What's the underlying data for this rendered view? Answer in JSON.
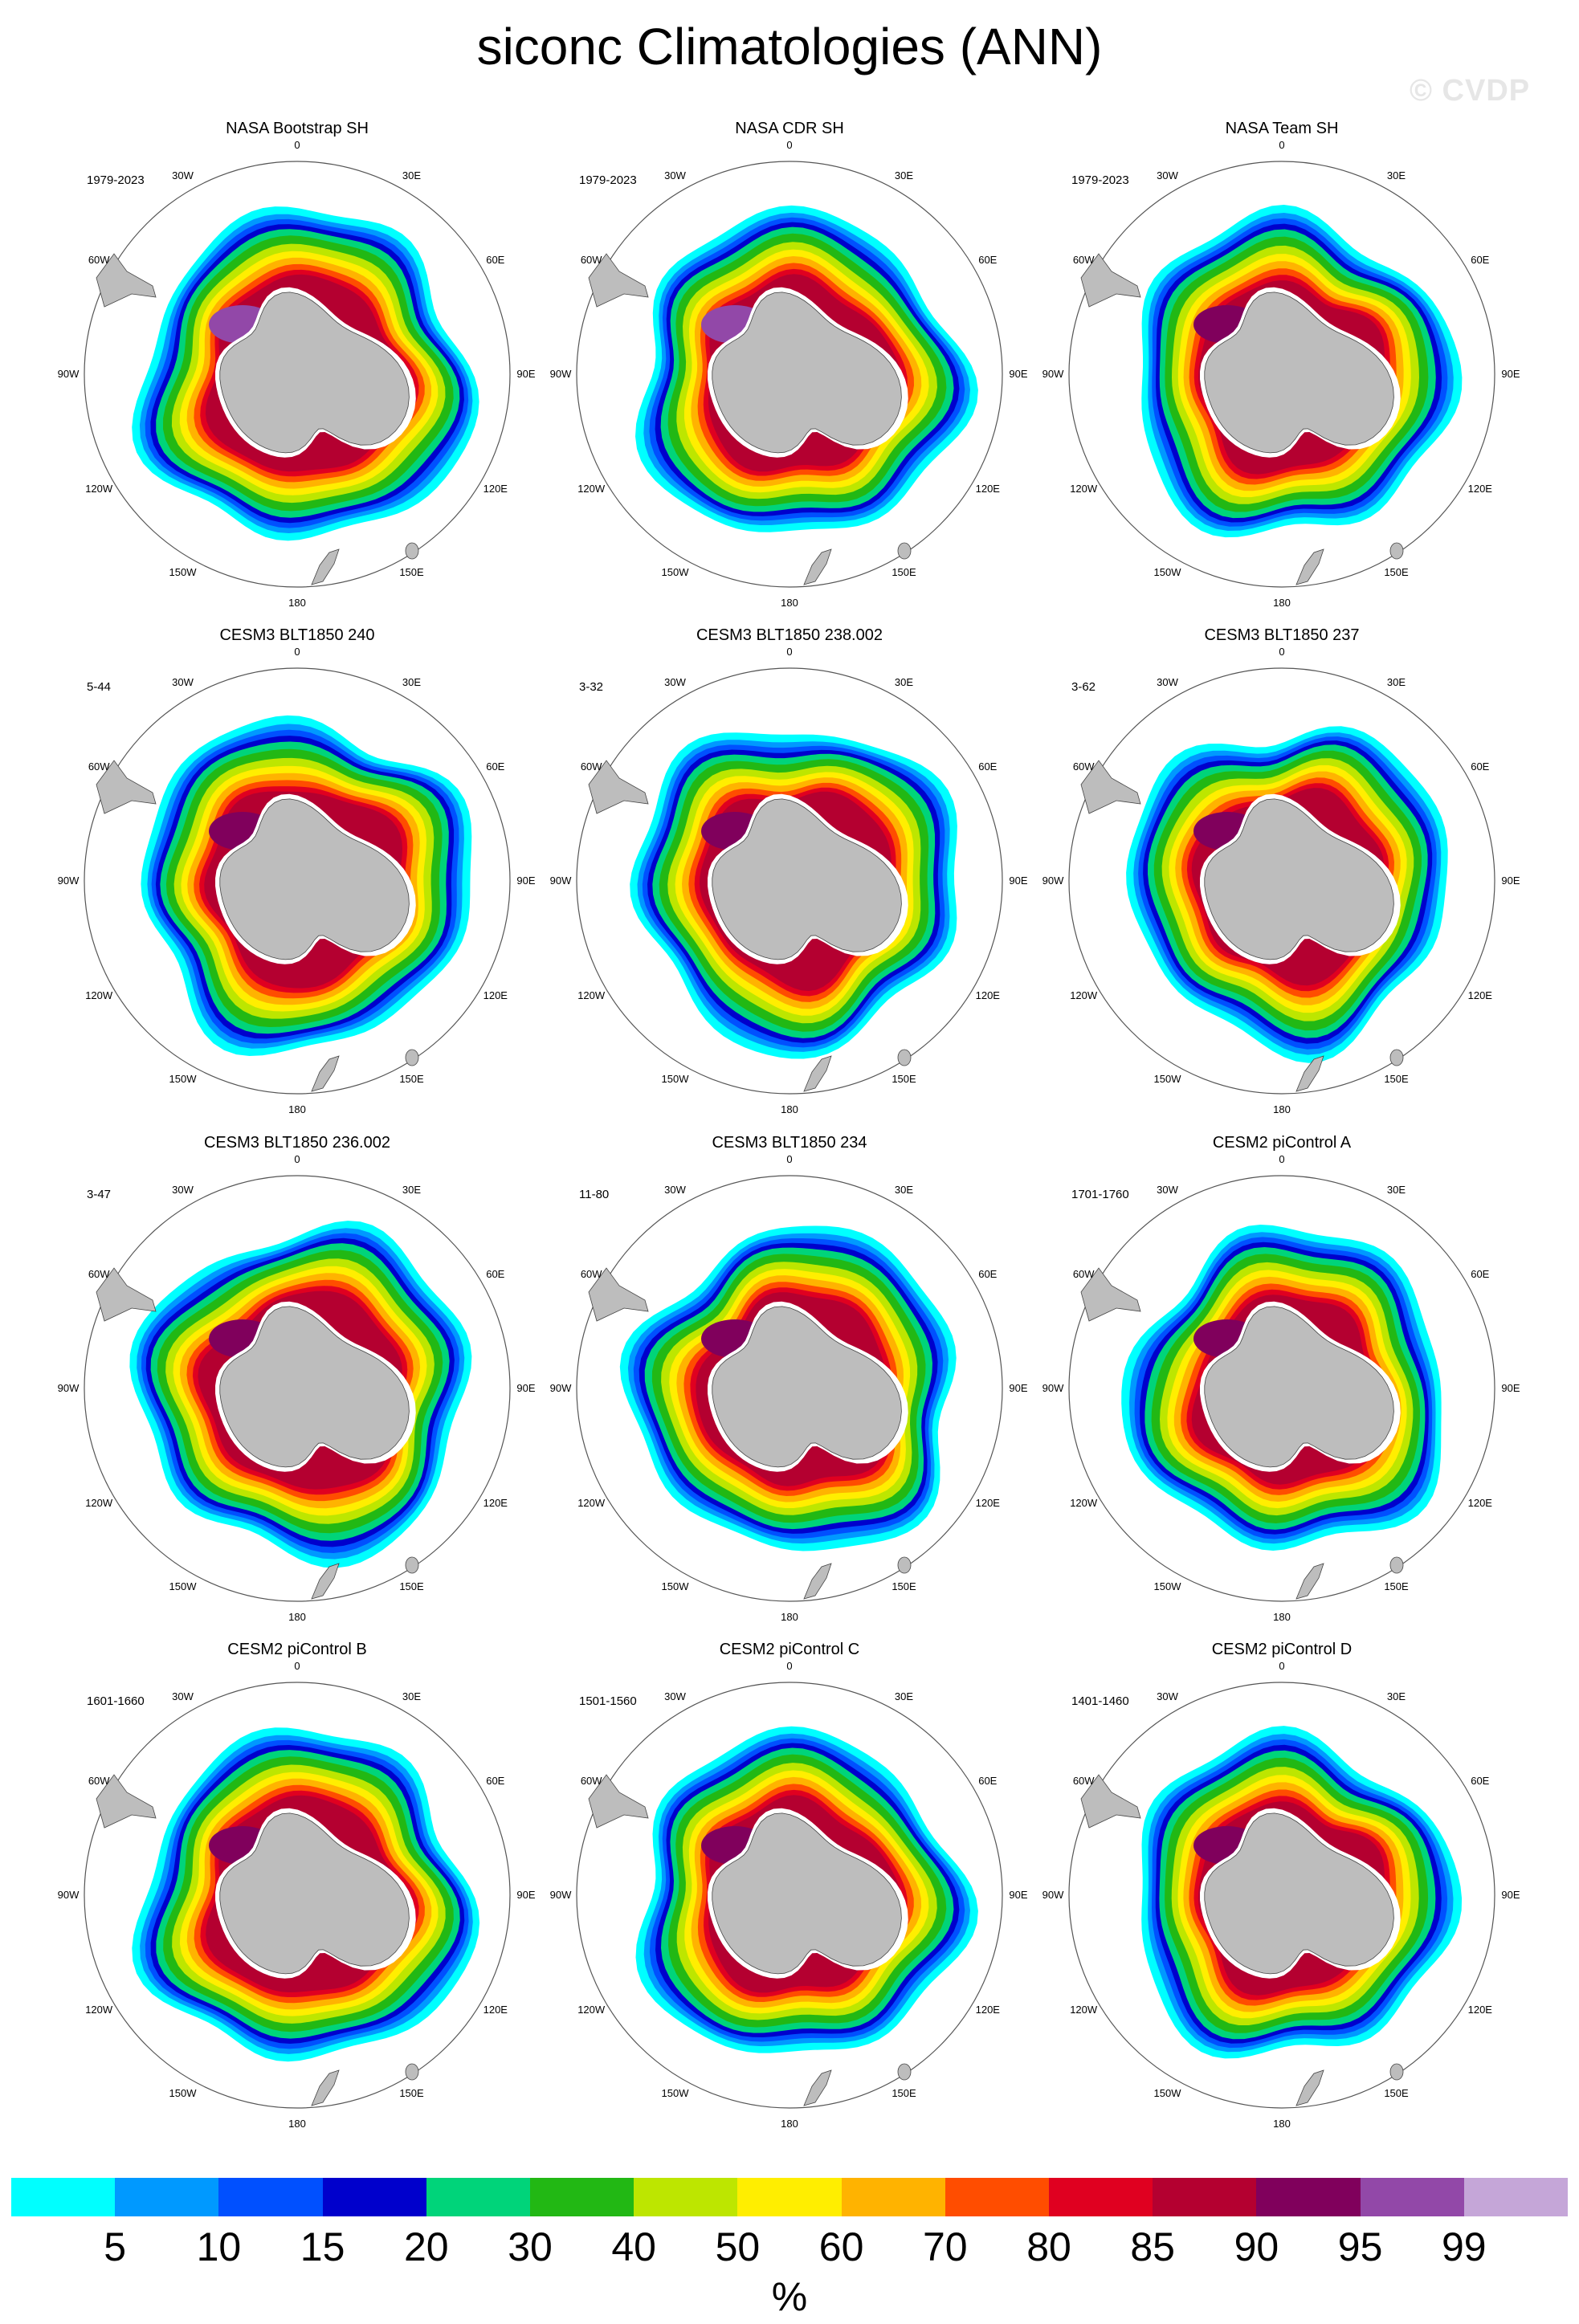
{
  "title": "siconc Climatologies (ANN)",
  "watermark": "© CVDP",
  "panels": [
    {
      "title": "NASA Bootstrap SH",
      "period": "1979-2023"
    },
    {
      "title": "NASA CDR SH",
      "period": "1979-2023"
    },
    {
      "title": "NASA Team SH",
      "period": "1979-2023"
    },
    {
      "title": "CESM3 BLT1850 240",
      "period": "5-44"
    },
    {
      "title": "CESM3 BLT1850 238.002",
      "period": "3-32"
    },
    {
      "title": "CESM3 BLT1850 237",
      "period": "3-62"
    },
    {
      "title": "CESM3 BLT1850 236.002",
      "period": "3-47"
    },
    {
      "title": "CESM3 BLT1850 234",
      "period": "11-80"
    },
    {
      "title": "CESM2 piControl A",
      "period": "1701-1760"
    },
    {
      "title": "CESM2 piControl B",
      "period": "1601-1660"
    },
    {
      "title": "CESM2 piControl C",
      "period": "1501-1560"
    },
    {
      "title": "CESM2 piControl D",
      "period": "1401-1460"
    }
  ],
  "longitude_labels": [
    {
      "lon": 0,
      "text": "0"
    },
    {
      "lon": -30,
      "text": "30W"
    },
    {
      "lon": 30,
      "text": "30E"
    },
    {
      "lon": -60,
      "text": "60W"
    },
    {
      "lon": 60,
      "text": "60E"
    },
    {
      "lon": -90,
      "text": "90W"
    },
    {
      "lon": 90,
      "text": "90E"
    },
    {
      "lon": -120,
      "text": "120W"
    },
    {
      "lon": 120,
      "text": "120E"
    },
    {
      "lon": -150,
      "text": "150W"
    },
    {
      "lon": 150,
      "text": "150E"
    },
    {
      "lon": 180,
      "text": "180"
    }
  ],
  "colorbar": {
    "colors": [
      "#00ffff",
      "#0099ff",
      "#0050ff",
      "#0000cc",
      "#00d47a",
      "#22b814",
      "#bde600",
      "#ffee00",
      "#ffb300",
      "#ff4d00",
      "#e00020",
      "#b40030",
      "#80005c",
      "#9248a8",
      "#c5a6d8"
    ],
    "labels": [
      "5",
      "10",
      "15",
      "20",
      "30",
      "40",
      "50",
      "60",
      "70",
      "80",
      "85",
      "90",
      "95",
      "99"
    ],
    "units": "%"
  },
  "map_colors": {
    "land": "#bdbdbd",
    "land_edge": "#444444"
  }
}
